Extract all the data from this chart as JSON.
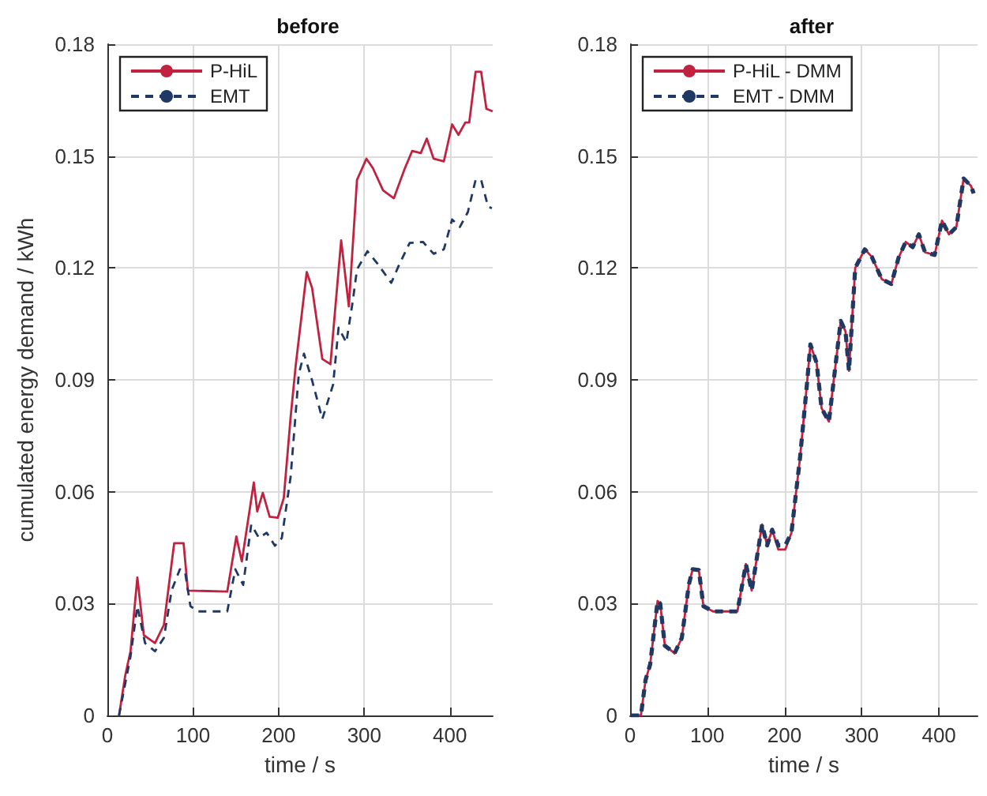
{
  "chart_data": [
    {
      "type": "line",
      "title": "before",
      "xlabel": "time / s",
      "ylabel": "cumulated energy demand / kWh",
      "xlim": [
        0,
        450
      ],
      "xticks": [
        0,
        100,
        200,
        300,
        400
      ],
      "ylim": [
        0,
        0.18
      ],
      "yticks": [
        0,
        0.03,
        0.06,
        0.09,
        0.12,
        0.15,
        0.18
      ],
      "grid": true,
      "legend": "top left",
      "series": [
        {
          "name": "P-HiL",
          "color": "#c0223f",
          "line_style": "solid",
          "x": [
            13.6,
            21,
            27,
            35,
            42.6,
            55.6,
            66,
            78,
            89,
            94,
            140,
            150.6,
            157,
            171,
            175,
            181.5,
            189.5,
            199,
            206,
            214,
            220,
            232.8,
            239,
            251,
            260.5,
            273,
            282,
            291.5,
            302.5,
            310,
            322,
            334.6,
            347,
            356,
            366,
            373,
            381,
            393,
            402.6,
            410,
            418,
            422.6,
            430,
            436.5,
            442.6,
            450
          ],
          "values": [
            0,
            0.0109,
            0.0172,
            0.037,
            0.0215,
            0.0194,
            0.0243,
            0.0462,
            0.0462,
            0.0335,
            0.0332,
            0.048,
            0.0413,
            0.0625,
            0.0547,
            0.0597,
            0.0533,
            0.053,
            0.0583,
            0.08,
            0.094,
            0.1189,
            0.1147,
            0.0956,
            0.0942,
            0.1274,
            0.1097,
            0.1436,
            0.1493,
            0.1468,
            0.1408,
            0.1387,
            0.1465,
            0.1514,
            0.1508,
            0.1547,
            0.1493,
            0.1486,
            0.1585,
            0.1557,
            0.159,
            0.159,
            0.1726,
            0.1726,
            0.1627,
            0.162
          ]
        },
        {
          "name": "EMT",
          "color": "#1f3864",
          "line_style": "dashed",
          "x": [
            13.6,
            27,
            35,
            44,
            55.6,
            66,
            75,
            84.6,
            90.7,
            97,
            106,
            140,
            149.4,
            158.6,
            168,
            177,
            186,
            195.7,
            203.7,
            214,
            223.5,
            229.6,
            239,
            251,
            263.6,
            270,
            279,
            286.5,
            291.5,
            303.7,
            316,
            331.5,
            341,
            353,
            368.5,
            381,
            393,
            402.6,
            411.7,
            421,
            430,
            436.5,
            444.5,
            449
          ],
          "values": [
            0,
            0.0158,
            0.0293,
            0.0194,
            0.0172,
            0.0208,
            0.0335,
            0.0392,
            0.0385,
            0.0293,
            0.0279,
            0.0279,
            0.0392,
            0.035,
            0.0512,
            0.0476,
            0.049,
            0.0455,
            0.0476,
            0.064,
            0.0915,
            0.097,
            0.0899,
            0.0795,
            0.0887,
            0.104,
            0.1,
            0.111,
            0.1196,
            0.1245,
            0.121,
            0.116,
            0.121,
            0.1267,
            0.127,
            0.1238,
            0.125,
            0.133,
            0.131,
            0.135,
            0.1436,
            0.1436,
            0.1365,
            0.136
          ]
        }
      ]
    },
    {
      "type": "line",
      "title": "after",
      "xlabel": "time / s",
      "xlim": [
        0,
        450
      ],
      "xticks": [
        0,
        100,
        200,
        300,
        400
      ],
      "ylim": [
        0,
        0.18
      ],
      "yticks": [
        0,
        0.03,
        0.06,
        0.09,
        0.12,
        0.15,
        0.18
      ],
      "grid": true,
      "legend": "top left",
      "series": [
        {
          "name": "P-HiL - DMM",
          "color": "#c0223f",
          "line_style": "solid",
          "x": [
            1,
            14,
            20,
            26,
            35.6,
            39,
            45,
            54,
            57.5,
            67,
            76,
            81,
            89,
            95,
            107.5,
            139,
            150,
            157.5,
            171,
            177.5,
            184,
            192,
            201,
            209,
            220,
            229,
            233.5,
            241.6,
            248,
            257.5,
            272.8,
            279,
            283.5,
            291.6,
            304,
            313,
            326,
            338.4,
            347.8,
            357,
            366,
            374,
            382,
            394.5,
            404,
            413,
            422.6,
            432,
            441.6,
            445
          ],
          "values": [
            0,
            0,
            0.0095,
            0.0137,
            0.0307,
            0.03,
            0.0187,
            0.0173,
            0.0166,
            0.0208,
            0.035,
            0.0392,
            0.039,
            0.0293,
            0.0279,
            0.0279,
            0.0406,
            0.0335,
            0.0512,
            0.0456,
            0.0498,
            0.0445,
            0.0445,
            0.049,
            0.0689,
            0.0887,
            0.0995,
            0.0945,
            0.0824,
            0.0788,
            0.1058,
            0.103,
            0.0924,
            0.12,
            0.125,
            0.123,
            0.117,
            0.1157,
            0.1228,
            0.127,
            0.1256,
            0.129,
            0.1242,
            0.1235,
            0.1327,
            0.129,
            0.131,
            0.144,
            0.142,
            0.14
          ]
        },
        {
          "name": "EMT - DMM",
          "color": "#1f3864",
          "line_style": "dashed",
          "x": [
            1,
            14,
            20,
            26,
            35.6,
            39,
            45,
            54,
            57.5,
            67,
            76,
            81,
            89,
            95,
            107.5,
            139,
            150,
            157.5,
            171,
            177.5,
            184,
            192,
            201,
            209,
            220,
            229,
            233.5,
            241.6,
            248,
            257.5,
            272.8,
            279,
            283.5,
            291.6,
            304,
            313,
            326,
            338.4,
            347.8,
            357,
            366,
            374,
            382,
            394.5,
            404,
            413,
            422.6,
            432,
            441.6,
            445
          ],
          "values": [
            0,
            0,
            0.0095,
            0.0137,
            0.0307,
            0.03,
            0.0187,
            0.0173,
            0.0166,
            0.0208,
            0.035,
            0.0392,
            0.039,
            0.0293,
            0.0279,
            0.0279,
            0.0406,
            0.0335,
            0.0512,
            0.0456,
            0.0498,
            0.0456,
            0.0456,
            0.049,
            0.0689,
            0.0887,
            0.0995,
            0.0945,
            0.0824,
            0.0788,
            0.1058,
            0.103,
            0.0924,
            0.12,
            0.125,
            0.123,
            0.117,
            0.1157,
            0.1228,
            0.127,
            0.1256,
            0.129,
            0.1242,
            0.1235,
            0.1327,
            0.129,
            0.131,
            0.144,
            0.142,
            0.14
          ]
        }
      ]
    }
  ]
}
